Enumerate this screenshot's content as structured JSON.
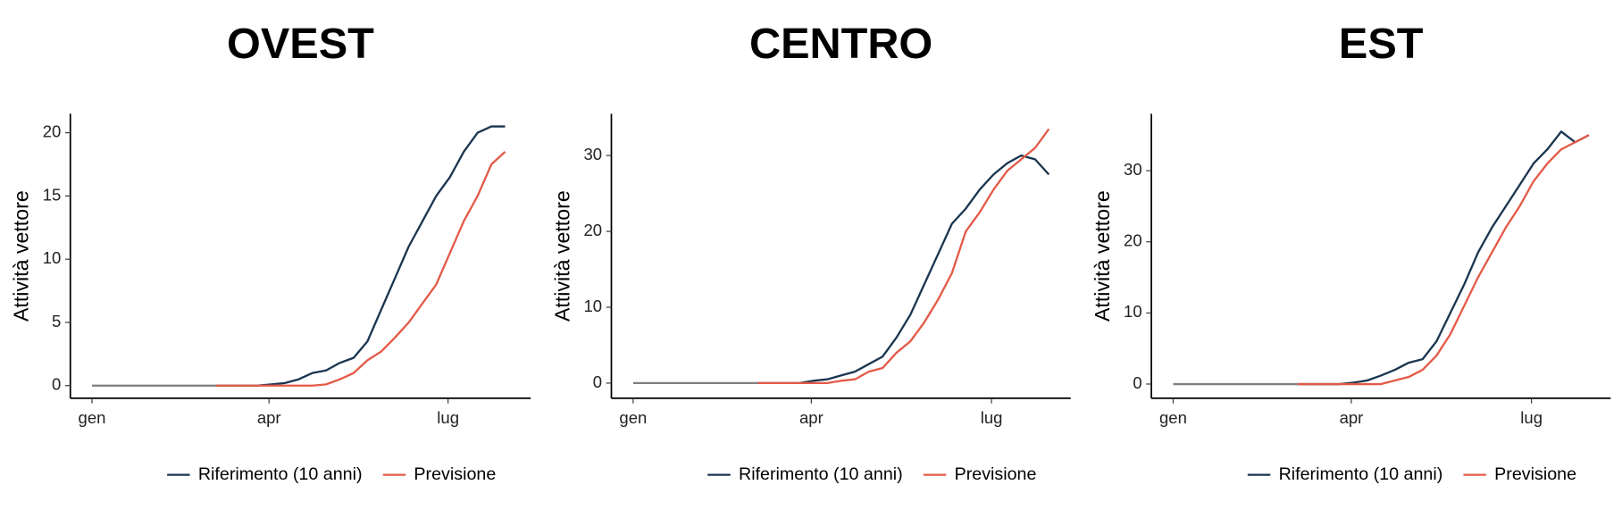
{
  "chart_data": [
    {
      "type": "line",
      "title": "OVEST",
      "ylabel": "Attività vettore",
      "legend": "bottom",
      "x": [
        0,
        7,
        14,
        21,
        28,
        35,
        42,
        49,
        56,
        63,
        70,
        77,
        84,
        91,
        98,
        105,
        112,
        119,
        126,
        133,
        140,
        147,
        154,
        161,
        168,
        175,
        182,
        189,
        196,
        203,
        210
      ],
      "xlim": [
        -11,
        223
      ],
      "xticks": [
        {
          "value": 0,
          "label": "gen"
        },
        {
          "value": 90,
          "label": "apr"
        },
        {
          "value": 181,
          "label": "lug"
        }
      ],
      "ylim": [
        -1,
        21.5
      ],
      "yticks": [
        0,
        5,
        10,
        15,
        20
      ],
      "series": [
        {
          "color": "#7f7f7f",
          "values": [
            0,
            0,
            0,
            0,
            0,
            0,
            0,
            0,
            0,
            0,
            null,
            null,
            null,
            null,
            null,
            null,
            null,
            null,
            null,
            null,
            null,
            null,
            null,
            null,
            null,
            null,
            null,
            null,
            null,
            null,
            null
          ]
        },
        {
          "name": "Riferimento (10 anni)",
          "color": "#1a3550",
          "values": [
            null,
            null,
            null,
            null,
            null,
            null,
            null,
            null,
            null,
            0,
            0,
            0,
            0,
            0.1,
            0.2,
            0.5,
            1,
            1.2,
            1.8,
            2.2,
            3.5,
            6,
            8.5,
            11,
            13,
            15,
            16.5,
            18.5,
            20,
            20.5,
            20.5
          ]
        },
        {
          "name": "Previsione",
          "color": "#e35a48",
          "values": [
            null,
            null,
            null,
            null,
            null,
            null,
            null,
            null,
            null,
            0,
            0,
            0,
            0,
            0,
            0,
            0,
            0,
            0.1,
            0.5,
            1,
            2,
            2.7,
            3.8,
            5,
            6.5,
            8,
            10.5,
            13,
            15,
            17.5,
            18.5
          ]
        }
      ]
    },
    {
      "type": "line",
      "title": "CENTRO",
      "ylabel": "Attività vettore",
      "legend": "bottom",
      "x": [
        0,
        7,
        14,
        21,
        28,
        35,
        42,
        49,
        56,
        63,
        70,
        77,
        84,
        91,
        98,
        105,
        112,
        119,
        126,
        133,
        140,
        147,
        154,
        161,
        168,
        175,
        182,
        189,
        196,
        203,
        210
      ],
      "xlim": [
        -11,
        221
      ],
      "xticks": [
        {
          "value": 0,
          "label": "gen"
        },
        {
          "value": 90,
          "label": "apr"
        },
        {
          "value": 181,
          "label": "lug"
        }
      ],
      "ylim": [
        -2,
        35.5
      ],
      "yticks": [
        0,
        10,
        20,
        30
      ],
      "series": [
        {
          "color": "#7f7f7f",
          "values": [
            0,
            0,
            0,
            0,
            0,
            0,
            0,
            0,
            0,
            0,
            null,
            null,
            null,
            null,
            null,
            null,
            null,
            null,
            null,
            null,
            null,
            null,
            null,
            null,
            null,
            null,
            null,
            null,
            null,
            null,
            null
          ]
        },
        {
          "name": "Riferimento (10 anni)",
          "color": "#1a3550",
          "values": [
            null,
            null,
            null,
            null,
            null,
            null,
            null,
            null,
            null,
            0,
            0,
            0,
            0,
            0.3,
            0.5,
            1,
            1.5,
            2.5,
            3.5,
            6,
            9,
            13,
            17,
            21,
            23,
            25.5,
            27.5,
            29,
            30,
            29.5,
            27.5
          ]
        },
        {
          "name": "Previsione",
          "color": "#e35a48",
          "values": [
            null,
            null,
            null,
            null,
            null,
            null,
            null,
            null,
            null,
            0,
            0,
            0,
            0,
            0,
            0,
            0.3,
            0.5,
            1.5,
            2,
            4,
            5.5,
            8,
            11,
            14.5,
            20,
            22.5,
            25.5,
            28,
            29.5,
            31,
            33.5
          ]
        }
      ]
    },
    {
      "type": "line",
      "title": "EST",
      "ylabel": "Attività vettore",
      "legend": "bottom",
      "x": [
        0,
        7,
        14,
        21,
        28,
        35,
        42,
        49,
        56,
        63,
        70,
        77,
        84,
        91,
        98,
        105,
        112,
        119,
        126,
        133,
        140,
        147,
        154,
        161,
        168,
        175,
        182,
        189,
        196,
        203,
        210
      ],
      "xlim": [
        -11,
        221
      ],
      "xticks": [
        {
          "value": 0,
          "label": "gen"
        },
        {
          "value": 90,
          "label": "apr"
        },
        {
          "value": 181,
          "label": "lug"
        }
      ],
      "ylim": [
        -2,
        38
      ],
      "yticks": [
        0,
        10,
        20,
        30
      ],
      "series": [
        {
          "color": "#7f7f7f",
          "values": [
            0,
            0,
            0,
            0,
            0,
            0,
            0,
            0,
            0,
            0,
            null,
            null,
            null,
            null,
            null,
            null,
            null,
            null,
            null,
            null,
            null,
            null,
            null,
            null,
            null,
            null,
            null,
            null,
            null,
            null,
            null
          ]
        },
        {
          "name": "Riferimento (10 anni)",
          "color": "#1a3550",
          "values": [
            null,
            null,
            null,
            null,
            null,
            null,
            null,
            null,
            null,
            0,
            0,
            0,
            0,
            0.2,
            0.5,
            1.2,
            2,
            3,
            3.5,
            6,
            10,
            14,
            18.5,
            22,
            25,
            28,
            31,
            33,
            35.5,
            34,
            35
          ]
        },
        {
          "name": "Previsione",
          "color": "#e35a48",
          "values": [
            null,
            null,
            null,
            null,
            null,
            null,
            null,
            null,
            null,
            0,
            0,
            0,
            0,
            0,
            0,
            0,
            0.5,
            1,
            2,
            4,
            7,
            11,
            15,
            18.5,
            22,
            25,
            28.5,
            31,
            33,
            34,
            35
          ]
        }
      ]
    }
  ]
}
